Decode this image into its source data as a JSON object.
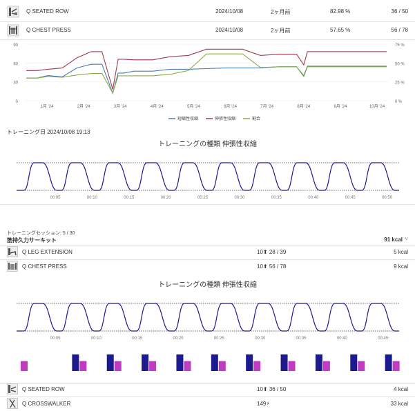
{
  "top_rows": [
    {
      "name": "Q SEATED ROW",
      "date": "2024/10/08",
      "ago": "2ヶ月前",
      "percent": "82.98 %",
      "score": "36 / 50",
      "icon": "seated-row-machine-icon"
    },
    {
      "name": "Q CHEST PRESS",
      "date": "2024/10/08",
      "ago": "2ヶ月前",
      "percent": "57.65 %",
      "score": "56 / 78",
      "icon": "chest-press-machine-icon"
    }
  ],
  "history_chart": {
    "type": "line",
    "x_ticks": [
      "1月 '24",
      "2月 '24",
      "3月 '24",
      "4月 '24",
      "5月 '24",
      "6月 '24",
      "7月 '24",
      "8月 '24",
      "9月 '24",
      "10月 '24"
    ],
    "y_left_ticks": [
      "90",
      "60",
      "30",
      "0"
    ],
    "y_right_ticks": [
      "75 %",
      "50 %",
      "25 %",
      "0 %"
    ],
    "ylim_left": [
      0,
      90
    ],
    "ylim_right": [
      0,
      75
    ],
    "legend": [
      "短縮性収縮",
      "伸張性収縮",
      "割合"
    ],
    "colors": {
      "concentric": "#4a7cb0",
      "eccentric": "#a0394e",
      "ratio": "#8aaa45"
    }
  },
  "chart_data": [
    {
      "type": "line",
      "x": [
        0,
        0.3,
        0.6,
        1.0,
        1.4,
        1.8,
        2.1,
        2.4,
        2.55,
        2.7,
        3.0,
        3.5,
        4.0,
        4.5,
        5.0,
        5.5,
        6.0,
        6.5,
        7.0,
        7.5,
        7.7,
        7.8,
        8.2,
        8.6,
        9.0,
        9.5,
        10.0
      ],
      "xlabel": "",
      "ylabel": "",
      "ylim": [
        0,
        90
      ],
      "series": [
        {
          "name": "短縮性収縮",
          "values": [
            36,
            36,
            40,
            38,
            52,
            58,
            58,
            12,
            44,
            44,
            47,
            47,
            50,
            50,
            51,
            52,
            52,
            52,
            54,
            54,
            40,
            55,
            55,
            55,
            55,
            55,
            55
          ]
        },
        {
          "name": "伸張性収縮",
          "values": [
            48,
            48,
            50,
            52,
            68,
            78,
            78,
            18,
            66,
            66,
            65,
            65,
            70,
            72,
            82,
            82,
            82,
            72,
            74,
            74,
            57,
            78,
            78,
            78,
            78,
            78,
            78
          ]
        }
      ]
    },
    {
      "type": "line",
      "title": "トレーニングの種類 伸張性収縮",
      "x_ticks": [
        "00:05",
        "00:10",
        "00:15",
        "00:20",
        "00:25",
        "00:30",
        "00:35",
        "00:40",
        "00:45",
        "00:50"
      ]
    },
    {
      "type": "line",
      "title": "トレーニングの種類 伸張性収縮",
      "x_ticks": [
        "00:05",
        "00:10",
        "00:15",
        "00:20",
        "00:25",
        "00:30",
        "00:35",
        "00:40",
        "00:45"
      ]
    }
  ],
  "training_date": "トレーニング日 2024/10/08 19:13",
  "rep_chart_1_title": "トレーニングの種類  伸張性収縮",
  "session": {
    "label": "トレーニングセッション: 5 / 30",
    "program": "筋持久力サーキット",
    "total_kcal": "91 kcal",
    "total_kcal_caret": "˅",
    "exercises": [
      {
        "name": "Q LEG EXTENSION",
        "reps": "10⬆ 28 / 39",
        "kcal": "5 kcal",
        "icon": "leg-extension-machine-icon"
      },
      {
        "name": "Q CHEST PRESS",
        "reps": "10⬆ 56 / 78",
        "kcal": "9 kcal",
        "icon": "chest-press-machine-icon"
      }
    ],
    "rep_chart_2_title": "トレーニングの種類  伸張性収縮",
    "exercises_after": [
      {
        "name": "Q SEATED ROW",
        "reps": "10⬆ 36 / 50",
        "kcal": "4 kcal",
        "icon": "seated-row-machine-icon"
      },
      {
        "name": "Q CROSSWALKER",
        "reps": "149⚡",
        "kcal": "33 kcal",
        "icon": "crosswalker-machine-icon"
      }
    ]
  },
  "bar_colors": {
    "navy": "#1c1a8c",
    "magenta": "#c03cc0"
  },
  "bar_chart": {
    "type": "bar",
    "series": [
      {
        "values": [
          0,
          1,
          1,
          1,
          1,
          1,
          1,
          1,
          1,
          1,
          1
        ]
      },
      {
        "values": [
          0.6,
          0.6,
          0.6,
          0.6,
          0.6,
          0.6,
          0.6,
          0.6,
          0.6,
          0.6,
          0.6
        ]
      }
    ]
  }
}
